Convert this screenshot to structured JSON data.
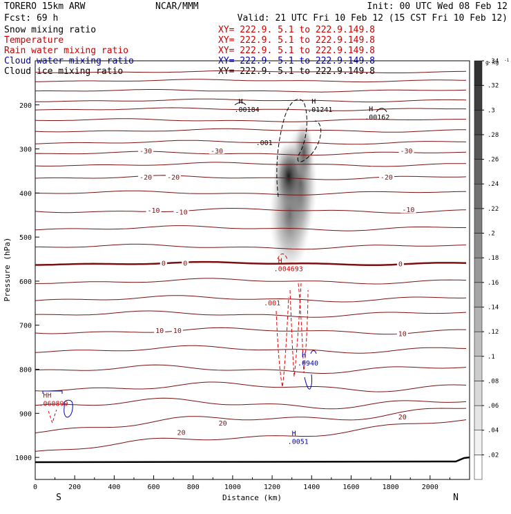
{
  "header": {
    "model": "TORERO  15km ARW",
    "agency": "NCAR/MMM",
    "init": "Init: 00 UTC Wed 08 Feb 12",
    "fcst": "Fcst:   69 h",
    "valid": "Valid: 21 UTC Fri 10 Feb 12 (15 CST Fri 10 Feb 12)"
  },
  "legend": [
    {
      "name": "Snow mixing ratio",
      "xy": "XY= 222.9.  5.1 to 222.9.149.8",
      "color": "#000000",
      "xycolor": "#cc0000"
    },
    {
      "name": "Temperature",
      "xy": "XY= 222.9.  5.1 to 222.9.149.8",
      "color": "#cc0000",
      "xycolor": "#cc0000"
    },
    {
      "name": "Rain water mixing ratio",
      "xy": "XY= 222.9.  5.1 to 222.9.149.8",
      "color": "#cc0000",
      "xycolor": "#cc0000"
    },
    {
      "name": "Cloud water mixing ratio",
      "xy": "XY= 222.9.  5.1 to 222.9.149.8",
      "color": "#0000aa",
      "xycolor": "#0000aa"
    },
    {
      "name": "Cloud ice mixing ratio",
      "xy": "XY= 222.9.  5.1 to 222.9.149.8",
      "color": "#000000",
      "xycolor": "#000000"
    }
  ],
  "colors": {
    "temp": "#7a1010",
    "rain": "#dd0000",
    "cloudwater": "#0000bb",
    "ice": "#000000",
    "frame": "#000000"
  },
  "chart_data": {
    "type": "cross-section",
    "xlabel": "Distance (km)",
    "ylabel": "Pressure (hPa)",
    "xlim": [
      0,
      2200
    ],
    "ylim": [
      1050,
      100
    ],
    "x_ticks": [
      "0",
      "200",
      "400",
      "600",
      "800",
      "1000",
      "1200",
      "1400",
      "1600",
      "1800",
      "2000"
    ],
    "y_ticks": [
      "200",
      "300",
      "400",
      "500",
      "600",
      "700",
      "800",
      "900",
      "1000"
    ],
    "end_labels": {
      "left": "S",
      "right": "N"
    },
    "colorbar": {
      "unit": "g kg",
      "unit_exp": "-1",
      "ticks": [
        ".02",
        ".04",
        ".06",
        ".08",
        ".1",
        ".12",
        ".14",
        ".16",
        ".18",
        ".2",
        ".22",
        ".24",
        ".26",
        ".28",
        ".3",
        ".32",
        ".34"
      ]
    },
    "temperature_labels": [
      {
        "text": "-30",
        "x": 560,
        "p": 305
      },
      {
        "text": "-30",
        "x": 920,
        "p": 305
      },
      {
        "text": "-30",
        "x": 1880,
        "p": 305
      },
      {
        "text": "-20",
        "x": 560,
        "p": 365
      },
      {
        "text": "-20",
        "x": 700,
        "p": 365
      },
      {
        "text": "-20",
        "x": 1780,
        "p": 365
      },
      {
        "text": "-10",
        "x": 600,
        "p": 440
      },
      {
        "text": "-10",
        "x": 740,
        "p": 444
      },
      {
        "text": "-10",
        "x": 1890,
        "p": 439
      },
      {
        "text": "0",
        "x": 650,
        "p": 560
      },
      {
        "text": "0",
        "x": 760,
        "p": 560
      },
      {
        "text": "0",
        "x": 1850,
        "p": 562
      },
      {
        "text": "10",
        "x": 630,
        "p": 713
      },
      {
        "text": "10",
        "x": 720,
        "p": 713
      },
      {
        "text": "10",
        "x": 1860,
        "p": 720
      },
      {
        "text": "20",
        "x": 950,
        "p": 923
      },
      {
        "text": "20",
        "x": 740,
        "p": 944
      },
      {
        "text": "20",
        "x": 1860,
        "p": 909
      }
    ],
    "max_labels": [
      {
        "h": "H",
        "value": ".00184",
        "x": 1030,
        "p": 210,
        "field": "ice"
      },
      {
        "h": "H",
        "value": ".01241",
        "x": 1400,
        "p": 210,
        "field": "ice"
      },
      {
        "h": "H",
        "value": ".00162",
        "x": 1690,
        "p": 227,
        "field": "ice"
      },
      {
        "h": "H",
        "value": ".004693",
        "x": 1230,
        "p": 571,
        "field": "rain"
      },
      {
        "h": "HH",
        "value": ".060899",
        "x": 40,
        "p": 877,
        "field": "rain"
      },
      {
        "h": "H",
        "value": ".0940",
        "x": 1350,
        "p": 785,
        "field": "cloudwater"
      },
      {
        "h": "H",
        "value": ".0051",
        "x": 1300,
        "p": 963,
        "field": "cloudwater"
      }
    ],
    "contour_labels": [
      {
        "text": ".001",
        "x": 1160,
        "p": 291,
        "field": "ice"
      },
      {
        "text": ".001",
        "x": 1200,
        "p": 655,
        "field": "rain"
      }
    ],
    "snow_max_gkg": 0.34,
    "freezing_level_hPa": 560
  }
}
